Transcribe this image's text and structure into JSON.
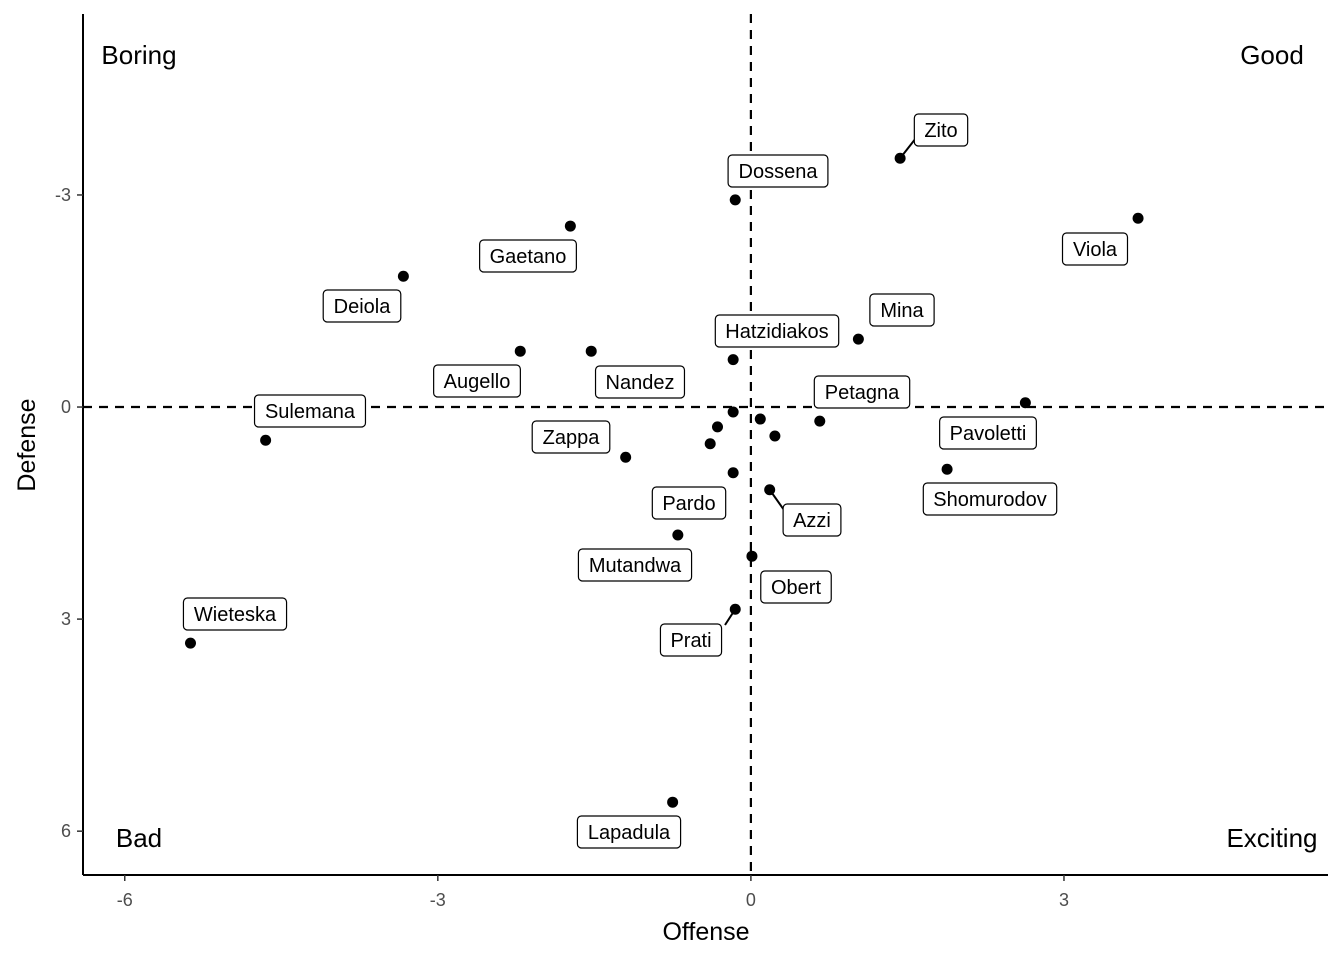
{
  "chart_data": {
    "type": "scatter",
    "title": "",
    "xlabel": "Offense",
    "ylabel": "Defense",
    "xlim": [
      -6.4,
      5.53
    ],
    "ylim": [
      -5.56,
      6.62
    ],
    "y_reversed": true,
    "x_ticks": [
      -6,
      -3,
      0,
      3
    ],
    "y_ticks": [
      -3,
      0,
      3,
      6
    ],
    "x_tick_labels": [
      "-6",
      "-3",
      "0",
      "3"
    ],
    "y_tick_labels": [
      "-3",
      "0",
      "3",
      "6"
    ],
    "reference_lines": {
      "x": 0,
      "y": 0,
      "style": "dashed"
    },
    "quadrant_labels": {
      "top_left": "Boring",
      "top_right": "Good",
      "bottom_left": "Bad",
      "bottom_right": "Exciting"
    },
    "grid": false,
    "points": [
      {
        "name": "Zito",
        "x": 1.43,
        "y": -3.52
      },
      {
        "name": "Dossena",
        "x": -0.15,
        "y": -2.93
      },
      {
        "name": "Viola",
        "x": 3.71,
        "y": -2.67
      },
      {
        "name": "Gaetano",
        "x": -1.73,
        "y": -2.56
      },
      {
        "name": "Deiola",
        "x": -3.33,
        "y": -1.85
      },
      {
        "name": "Mina",
        "x": 1.03,
        "y": -0.96
      },
      {
        "name": "Augello",
        "x": -2.21,
        "y": -0.79
      },
      {
        "name": "Nandez",
        "x": -1.53,
        "y": -0.79
      },
      {
        "name": "Hatzidiakos",
        "x": -0.17,
        "y": -0.67
      },
      {
        "name": "Pavoletti",
        "x": 2.63,
        "y": -0.06
      },
      {
        "name": "Petagna",
        "x": 0.66,
        "y": 0.2
      },
      {
        "name": "Sulemana",
        "x": -4.65,
        "y": 0.47
      },
      {
        "name": "",
        "x": -0.17,
        "y": 0.07
      },
      {
        "name": "",
        "x": 0.09,
        "y": 0.17
      },
      {
        "name": "",
        "x": -0.32,
        "y": 0.28
      },
      {
        "name": "",
        "x": 0.23,
        "y": 0.41
      },
      {
        "name": "",
        "x": -0.39,
        "y": 0.52
      },
      {
        "name": "Zappa",
        "x": -1.2,
        "y": 0.71
      },
      {
        "name": "Shomurodov",
        "x": 1.88,
        "y": 0.88
      },
      {
        "name": "Pardo",
        "x": -0.17,
        "y": 0.93
      },
      {
        "name": "Azzi",
        "x": 0.18,
        "y": 1.17
      },
      {
        "name": "Mutandwa",
        "x": -0.7,
        "y": 1.81
      },
      {
        "name": "Obert",
        "x": 0.01,
        "y": 2.11
      },
      {
        "name": "Prati",
        "x": -0.15,
        "y": 2.86
      },
      {
        "name": "Wieteska",
        "x": -5.37,
        "y": 3.34
      },
      {
        "name": "Lapadula",
        "x": -0.75,
        "y": 5.59
      }
    ]
  }
}
